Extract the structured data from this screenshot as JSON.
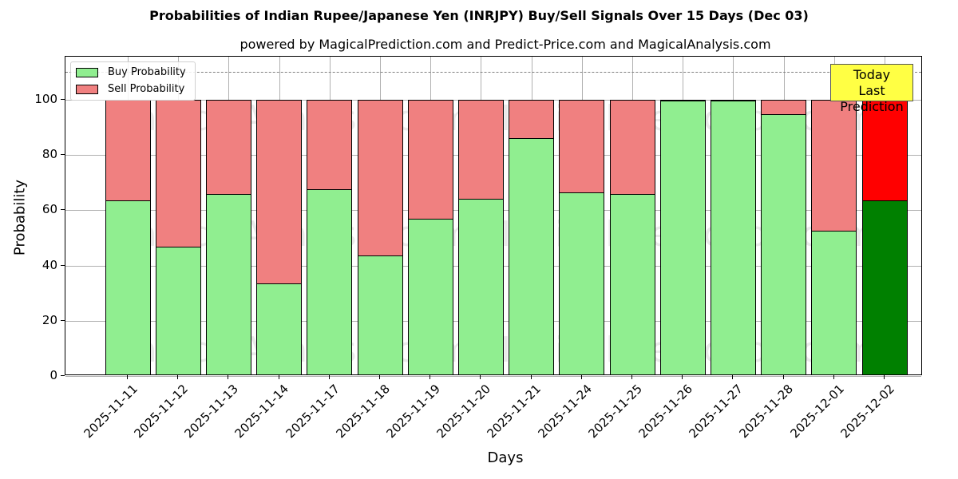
{
  "title": "Probabilities of Indian Rupee/Japanese Yen (INRJPY) Buy/Sell Signals Over 15 Days (Dec 03)",
  "subtitle": "powered by MagicalPrediction.com and Predict-Price.com and MagicalAnalysis.com",
  "legend": {
    "buy_label": "Buy Probability",
    "sell_label": "Sell Probability"
  },
  "annotation": {
    "line1": "Today",
    "line2": "Last Prediction"
  },
  "watermarks": [
    "MagicalAnalysis.com",
    "MagicalPrediction.com"
  ],
  "colors": {
    "buy": "#90ee90",
    "sell": "#f08080",
    "today_buy": "#008000",
    "today_sell": "#ff0000",
    "annotation_bg": "#ffff44"
  },
  "chart_data": {
    "type": "bar",
    "stacked": true,
    "title": "Probabilities of Indian Rupee/Japanese Yen (INRJPY) Buy/Sell Signals Over 15 Days (Dec 03)",
    "subtitle": "powered by MagicalPrediction.com and Predict-Price.com and MagicalAnalysis.com",
    "xlabel": "Days",
    "ylabel": "Probability",
    "ylim": [
      0,
      115
    ],
    "yticks": [
      0,
      20,
      40,
      60,
      80,
      100
    ],
    "grid": true,
    "legend_position": "upper left",
    "reference_line": 110,
    "categories": [
      "2025-11-11",
      "2025-11-12",
      "2025-11-13",
      "2025-11-14",
      "2025-11-17",
      "2025-11-18",
      "2025-11-19",
      "2025-11-20",
      "2025-11-21",
      "2025-11-24",
      "2025-11-25",
      "2025-11-26",
      "2025-11-27",
      "2025-11-28",
      "2025-12-01",
      "2025-12-02"
    ],
    "series": [
      {
        "name": "Buy Probability",
        "values": [
          63.6,
          46.8,
          65.9,
          33.5,
          67.6,
          43.6,
          56.9,
          64.2,
          86.1,
          66.5,
          65.9,
          99.8,
          99.8,
          94.8,
          52.6,
          63.6
        ]
      },
      {
        "name": "Sell Probability",
        "values": [
          36.4,
          53.2,
          34.1,
          66.5,
          32.4,
          56.4,
          43.1,
          35.8,
          13.9,
          33.5,
          34.1,
          0.2,
          0.2,
          5.2,
          47.4,
          36.4
        ]
      }
    ],
    "annotations": [
      {
        "text": "Today\nLast Prediction",
        "x": "2025-12-02"
      }
    ]
  }
}
